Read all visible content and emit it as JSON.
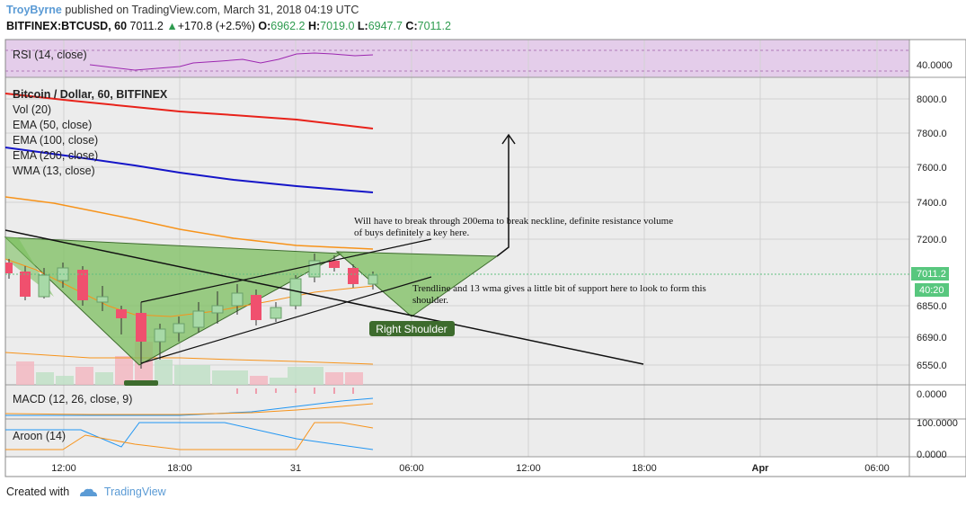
{
  "header": {
    "author": "TroyByrne",
    "published": "published on TradingView.com, March 31, 2018 04:19 UTC",
    "symbol": "BITFINEX:BTCUSD, 60",
    "last": "7011.2",
    "change": "+170.8 (+2.5%)",
    "o_label": "O:",
    "o_val": "6962.2",
    "h_label": "H:",
    "h_val": "7019.0",
    "l_label": "L:",
    "l_val": "6947.7",
    "c_label": "C:",
    "c_val": "7011.2"
  },
  "legend": {
    "rsi": "RSI (14, close)",
    "title": "Bitcoin / Dollar, 60, BITFINEX",
    "vol": "Vol (20)",
    "ema50": "EMA (50, close)",
    "ema100": "EMA (100, close)",
    "ema200": "EMA (200, close)",
    "wma13": "WMA (13, close)",
    "macd": "MACD (12, 26, close, 9)",
    "aroon": "Aroon (14)"
  },
  "annotations": {
    "note1_line1": "Will have to break through 200ema to break neckline, definite resistance volume",
    "note1_line2": "of buys definitely a key here.",
    "note2_line1": "Trendline and 13 wma gives a little bit of support here to look to form this",
    "note2_line2": "shoulder.",
    "right_shoulder": "Right Shoulder"
  },
  "price_axis": {
    "rsi_tick": "40.0000",
    "ticks": [
      "8000.0",
      "7800.0",
      "7600.0",
      "7400.0",
      "7200.0",
      "6850.0",
      "6690.0",
      "6550.0"
    ],
    "last_price": "7011.2",
    "countdown": "40:20",
    "macd_tick": "0.0000",
    "aroon_ticks": [
      "100.0000",
      "0.0000"
    ]
  },
  "time_axis": [
    "12:00",
    "18:00",
    "31",
    "06:00",
    "12:00",
    "18:00",
    "Apr",
    "06:00"
  ],
  "colors": {
    "ema50": "#f7931a",
    "ema100": "#1515c8",
    "ema200": "#e8221a",
    "pattern_fill": "#7cbf5f",
    "candle_up": "#a7d9a7",
    "candle_down": "#f0506e",
    "rsi": "#9c27b0",
    "badge": "#3d6b2d"
  },
  "footer": {
    "created_with": "Created with",
    "brand": "TradingView"
  }
}
